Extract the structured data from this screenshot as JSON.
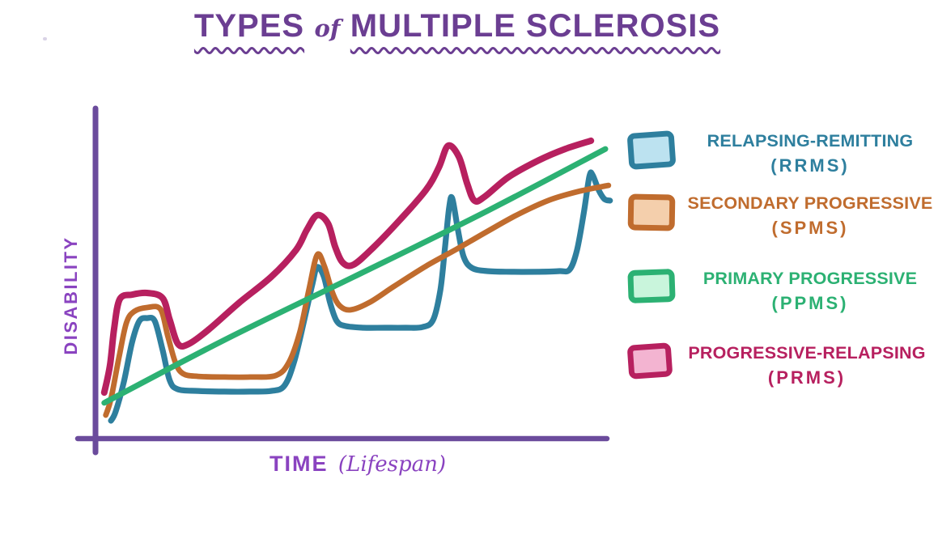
{
  "title": {
    "part1": "TYPES",
    "part2": "of",
    "part3": "MULTIPLE SCLEROSIS"
  },
  "axes": {
    "y_label": "DISABILITY",
    "x_label_main": "TIME",
    "x_label_paren": "(Lifespan)"
  },
  "colors": {
    "background": "#ffffff",
    "title": "#6b3e92",
    "axis_line": "#6b4b9c",
    "axis_label": "#8a43c0"
  },
  "chart_data": {
    "type": "line",
    "title": "TYPES of MULTIPLE SCLEROSIS",
    "xlabel": "TIME (Lifespan)",
    "ylabel": "DISABILITY",
    "xlim": [
      0,
      100
    ],
    "ylim": [
      0,
      100
    ],
    "grid": false,
    "legend_position": "right",
    "units": "normalized 0-100, qualitative hand-drawn sketch (axes have no tick labels)",
    "series": [
      {
        "label": "RELAPSING-REMITTING",
        "abbr": "(RRMS)",
        "color": "#2e7f9e",
        "swatch_fill": "#bce2f0",
        "width": 7.2,
        "points": [
          [
            3.0,
            5.4
          ],
          [
            3.9,
            8.1
          ],
          [
            5.5,
            17.1
          ],
          [
            7.1,
            29.1
          ],
          [
            8.5,
            35.5
          ],
          [
            10.0,
            36.4
          ],
          [
            11.5,
            35.5
          ],
          [
            13.0,
            26.9
          ],
          [
            14.4,
            17.6
          ],
          [
            16.0,
            14.9
          ],
          [
            19.9,
            14.4
          ],
          [
            25.0,
            14.2
          ],
          [
            30.0,
            14.2
          ],
          [
            34.1,
            14.4
          ],
          [
            36.6,
            15.9
          ],
          [
            38.5,
            23.0
          ],
          [
            40.5,
            35.9
          ],
          [
            42.1,
            46.9
          ],
          [
            43.0,
            51.8
          ],
          [
            44.3,
            48.9
          ],
          [
            45.5,
            41.1
          ],
          [
            46.8,
            35.5
          ],
          [
            48.5,
            34.0
          ],
          [
            52.0,
            33.5
          ],
          [
            56.0,
            33.5
          ],
          [
            60.0,
            33.5
          ],
          [
            63.4,
            33.7
          ],
          [
            65.5,
            35.9
          ],
          [
            66.9,
            45.0
          ],
          [
            67.8,
            57.9
          ],
          [
            68.6,
            69.9
          ],
          [
            69.2,
            72.6
          ],
          [
            70.3,
            63.1
          ],
          [
            71.4,
            55.0
          ],
          [
            73.0,
            51.6
          ],
          [
            76.0,
            50.6
          ],
          [
            81.0,
            50.4
          ],
          [
            86.0,
            50.4
          ],
          [
            90.0,
            50.6
          ],
          [
            92.0,
            51.1
          ],
          [
            93.4,
            57.0
          ],
          [
            94.7,
            68.0
          ],
          [
            95.8,
            79.2
          ],
          [
            96.4,
            79.7
          ],
          [
            97.6,
            75.1
          ],
          [
            98.7,
            72.4
          ],
          [
            99.8,
            71.9
          ]
        ]
      },
      {
        "label": "SECONDARY PROGRESSIVE",
        "abbr": "(SPMS)",
        "color": "#c06c2e",
        "swatch_fill": "#f4cfac",
        "width": 6.8,
        "points": [
          [
            2.0,
            7.1
          ],
          [
            3.0,
            12.0
          ],
          [
            4.6,
            24.9
          ],
          [
            6.0,
            35.0
          ],
          [
            7.5,
            38.4
          ],
          [
            10.0,
            39.6
          ],
          [
            12.6,
            39.1
          ],
          [
            14.0,
            31.1
          ],
          [
            15.5,
            23.0
          ],
          [
            17.0,
            19.6
          ],
          [
            19.9,
            18.8
          ],
          [
            25.0,
            18.6
          ],
          [
            30.0,
            18.6
          ],
          [
            35.0,
            19.1
          ],
          [
            37.5,
            23.0
          ],
          [
            39.6,
            32.0
          ],
          [
            41.4,
            45.0
          ],
          [
            43.0,
            55.5
          ],
          [
            44.4,
            52.1
          ],
          [
            46.0,
            44.0
          ],
          [
            47.4,
            40.1
          ],
          [
            49.5,
            38.9
          ],
          [
            53.1,
            41.1
          ],
          [
            57.9,
            46.0
          ],
          [
            64.1,
            52.1
          ],
          [
            70.0,
            57.2
          ],
          [
            76.0,
            62.6
          ],
          [
            81.9,
            67.7
          ],
          [
            88.1,
            72.1
          ],
          [
            94.0,
            74.8
          ],
          [
            99.5,
            76.5
          ]
        ]
      },
      {
        "label": "PRIMARY PROGRESSIVE",
        "abbr": "(PPMS)",
        "color": "#2cb173",
        "swatch_fill": "#c9f5dc",
        "width": 7.0,
        "points": [
          [
            1.7,
            10.8
          ],
          [
            25.0,
            29.8
          ],
          [
            50.0,
            48.8
          ],
          [
            75.0,
            68.0
          ],
          [
            98.9,
            87.5
          ]
        ]
      },
      {
        "label": "PROGRESSIVE-RELAPSING",
        "abbr": "(PRMS)",
        "color": "#b7205f",
        "swatch_fill": "#f3b4d1",
        "width": 8.0,
        "points": [
          [
            1.7,
            13.9
          ],
          [
            2.8,
            22.0
          ],
          [
            3.6,
            33.0
          ],
          [
            4.7,
            42.1
          ],
          [
            7.1,
            43.5
          ],
          [
            10.0,
            44.0
          ],
          [
            13.0,
            42.5
          ],
          [
            14.4,
            35.9
          ],
          [
            16.0,
            28.6
          ],
          [
            18.1,
            28.6
          ],
          [
            22.0,
            33.0
          ],
          [
            27.9,
            41.1
          ],
          [
            34.1,
            48.9
          ],
          [
            38.9,
            57.0
          ],
          [
            41.0,
            63.1
          ],
          [
            43.0,
            67.5
          ],
          [
            45.1,
            65.0
          ],
          [
            46.5,
            57.9
          ],
          [
            48.0,
            53.1
          ],
          [
            50.1,
            52.6
          ],
          [
            54.0,
            57.9
          ],
          [
            59.0,
            66.0
          ],
          [
            64.1,
            75.1
          ],
          [
            66.6,
            81.9
          ],
          [
            68.4,
            88.5
          ],
          [
            70.5,
            85.1
          ],
          [
            72.1,
            77.0
          ],
          [
            73.5,
            71.9
          ],
          [
            75.5,
            73.1
          ],
          [
            80.1,
            79.0
          ],
          [
            86.0,
            84.1
          ],
          [
            91.1,
            87.5
          ],
          [
            96.1,
            90.0
          ]
        ]
      }
    ]
  }
}
